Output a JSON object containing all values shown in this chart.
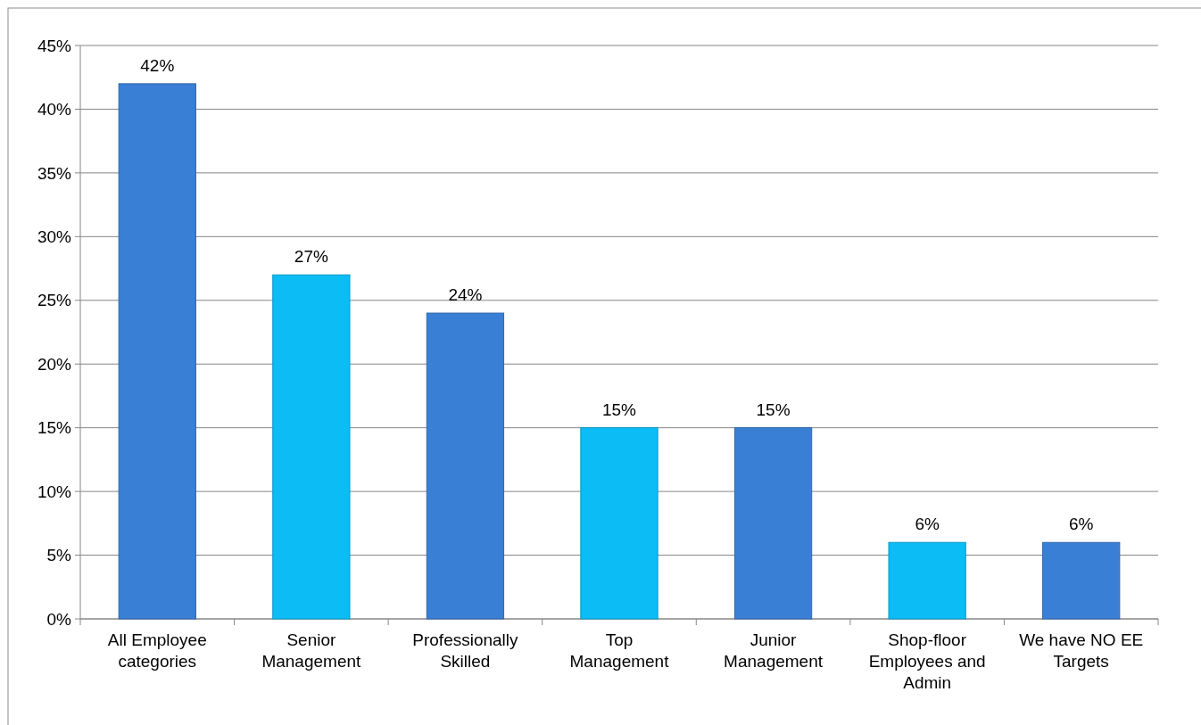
{
  "chart_data": {
    "type": "bar",
    "categories": [
      "All Employee categories",
      "Senior Management",
      "Professionally Skilled",
      "Top Management",
      "Junior Management",
      "Shop-floor Employees and Admin",
      "We have NO EE Targets"
    ],
    "values": [
      42,
      27,
      24,
      15,
      15,
      6,
      6
    ],
    "colors": [
      "#3a7fd6",
      "#0bbcf5",
      "#3a7fd6",
      "#0bbcf5",
      "#3a7fd6",
      "#0bbcf5",
      "#3a7fd6"
    ],
    "value_labels": [
      "42%",
      "27%",
      "24%",
      "15%",
      "15%",
      "6%",
      "6%"
    ],
    "ylim": [
      0,
      45
    ],
    "yticks": [
      {
        "value": 0,
        "label": "0%"
      },
      {
        "value": 5,
        "label": "5%"
      },
      {
        "value": 10,
        "label": "10%"
      },
      {
        "value": 15,
        "label": "15%"
      },
      {
        "value": 20,
        "label": "20%"
      },
      {
        "value": 25,
        "label": "25%"
      },
      {
        "value": 30,
        "label": "30%"
      },
      {
        "value": 35,
        "label": "35%"
      },
      {
        "value": 40,
        "label": "40%"
      },
      {
        "value": 45,
        "label": "45%"
      }
    ],
    "grid": "y"
  }
}
